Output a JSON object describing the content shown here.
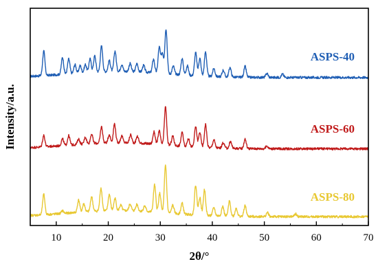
{
  "chart_data": {
    "type": "line",
    "title": "",
    "xlabel": "2θ/°",
    "ylabel": "Intensity/a.u.",
    "xlim": [
      5,
      70
    ],
    "x_ticks": [
      10,
      20,
      30,
      40,
      50,
      60,
      70
    ],
    "y_ticks_shown": false,
    "grid": false,
    "legend": "none",
    "style": "stacked offset XRD patterns, each series labelled directly on the plot",
    "series": [
      {
        "name": "ASPS-40",
        "color": "#1f5eb4",
        "baseline": 2.05,
        "peaks": [
          {
            "x": 7.6,
            "h": 0.36
          },
          {
            "x": 11.2,
            "h": 0.25
          },
          {
            "x": 12.4,
            "h": 0.22
          },
          {
            "x": 13.6,
            "h": 0.13
          },
          {
            "x": 14.6,
            "h": 0.11
          },
          {
            "x": 15.6,
            "h": 0.12
          },
          {
            "x": 16.5,
            "h": 0.2
          },
          {
            "x": 17.4,
            "h": 0.24
          },
          {
            "x": 18.7,
            "h": 0.38
          },
          {
            "x": 20.2,
            "h": 0.16
          },
          {
            "x": 21.3,
            "h": 0.3
          },
          {
            "x": 22.6,
            "h": 0.1
          },
          {
            "x": 24.2,
            "h": 0.12
          },
          {
            "x": 25.5,
            "h": 0.12
          },
          {
            "x": 26.8,
            "h": 0.1
          },
          {
            "x": 28.7,
            "h": 0.2
          },
          {
            "x": 29.8,
            "h": 0.38
          },
          {
            "x": 30.4,
            "h": 0.3
          },
          {
            "x": 31.1,
            "h": 0.66
          },
          {
            "x": 32.5,
            "h": 0.12
          },
          {
            "x": 34.2,
            "h": 0.24
          },
          {
            "x": 35.2,
            "h": 0.14
          },
          {
            "x": 36.8,
            "h": 0.34
          },
          {
            "x": 37.6,
            "h": 0.26
          },
          {
            "x": 38.7,
            "h": 0.36
          },
          {
            "x": 40.3,
            "h": 0.12
          },
          {
            "x": 42.1,
            "h": 0.1
          },
          {
            "x": 43.4,
            "h": 0.14
          },
          {
            "x": 46.3,
            "h": 0.16
          },
          {
            "x": 50.5,
            "h": 0.06
          },
          {
            "x": 53.5,
            "h": 0.05
          }
        ]
      },
      {
        "name": "ASPS-60",
        "color": "#c01a1a",
        "baseline": 1.0,
        "peaks": [
          {
            "x": 7.6,
            "h": 0.17
          },
          {
            "x": 11.2,
            "h": 0.1
          },
          {
            "x": 12.4,
            "h": 0.14
          },
          {
            "x": 14.3,
            "h": 0.08
          },
          {
            "x": 15.6,
            "h": 0.1
          },
          {
            "x": 16.8,
            "h": 0.14
          },
          {
            "x": 18.7,
            "h": 0.24
          },
          {
            "x": 20.2,
            "h": 0.12
          },
          {
            "x": 21.2,
            "h": 0.28
          },
          {
            "x": 22.6,
            "h": 0.1
          },
          {
            "x": 24.3,
            "h": 0.12
          },
          {
            "x": 25.6,
            "h": 0.1
          },
          {
            "x": 28.8,
            "h": 0.18
          },
          {
            "x": 29.8,
            "h": 0.2
          },
          {
            "x": 31.0,
            "h": 0.56
          },
          {
            "x": 32.4,
            "h": 0.14
          },
          {
            "x": 34.2,
            "h": 0.2
          },
          {
            "x": 35.4,
            "h": 0.12
          },
          {
            "x": 36.8,
            "h": 0.3
          },
          {
            "x": 37.6,
            "h": 0.22
          },
          {
            "x": 38.7,
            "h": 0.34
          },
          {
            "x": 40.3,
            "h": 0.12
          },
          {
            "x": 42.1,
            "h": 0.08
          },
          {
            "x": 43.5,
            "h": 0.1
          },
          {
            "x": 46.3,
            "h": 0.14
          },
          {
            "x": 50.5,
            "h": 0.04
          }
        ]
      },
      {
        "name": "ASPS-80",
        "color": "#e8c832",
        "baseline": 0.0,
        "peaks": [
          {
            "x": 7.6,
            "h": 0.3
          },
          {
            "x": 11.2,
            "h": 0.04
          },
          {
            "x": 14.3,
            "h": 0.18
          },
          {
            "x": 15.3,
            "h": 0.12
          },
          {
            "x": 16.8,
            "h": 0.22
          },
          {
            "x": 18.6,
            "h": 0.34
          },
          {
            "x": 20.2,
            "h": 0.24
          },
          {
            "x": 21.3,
            "h": 0.18
          },
          {
            "x": 22.4,
            "h": 0.08
          },
          {
            "x": 24.2,
            "h": 0.1
          },
          {
            "x": 25.5,
            "h": 0.1
          },
          {
            "x": 27.0,
            "h": 0.08
          },
          {
            "x": 28.9,
            "h": 0.4
          },
          {
            "x": 29.9,
            "h": 0.28
          },
          {
            "x": 31.0,
            "h": 0.7
          },
          {
            "x": 32.4,
            "h": 0.12
          },
          {
            "x": 34.2,
            "h": 0.16
          },
          {
            "x": 36.8,
            "h": 0.44
          },
          {
            "x": 37.6,
            "h": 0.26
          },
          {
            "x": 38.5,
            "h": 0.38
          },
          {
            "x": 40.3,
            "h": 0.12
          },
          {
            "x": 42.0,
            "h": 0.14
          },
          {
            "x": 43.3,
            "h": 0.22
          },
          {
            "x": 44.6,
            "h": 0.12
          },
          {
            "x": 46.3,
            "h": 0.16
          },
          {
            "x": 50.6,
            "h": 0.06
          },
          {
            "x": 56.0,
            "h": 0.04
          }
        ]
      }
    ]
  }
}
